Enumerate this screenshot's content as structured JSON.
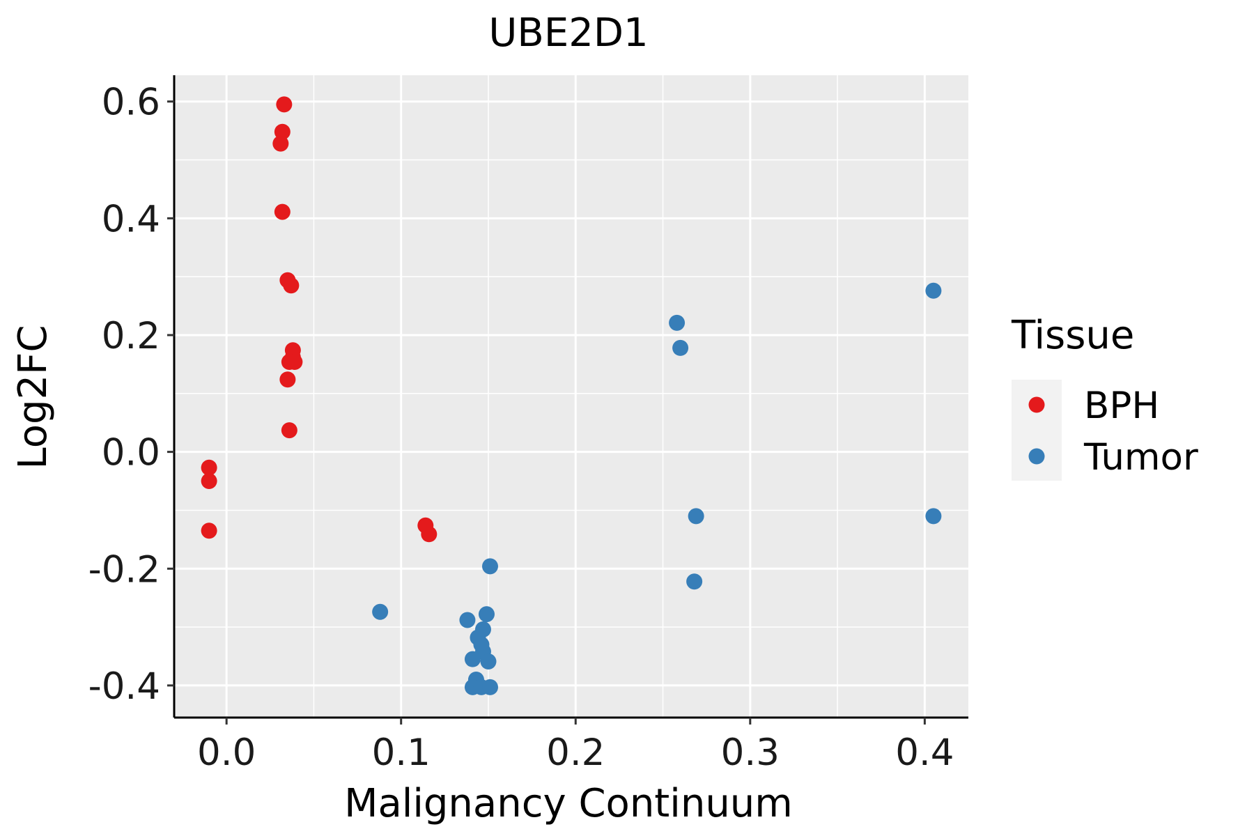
{
  "chart_data": {
    "type": "scatter",
    "title": "UBE2D1",
    "xlabel": "Malignancy Continuum",
    "ylabel": "Log2FC",
    "xlim": [
      -0.03,
      0.425
    ],
    "ylim": [
      -0.455,
      0.645
    ],
    "xticks": [
      0.0,
      0.1,
      0.2,
      0.3,
      0.4
    ],
    "xtick_labels": [
      "0.0",
      "0.1",
      "0.2",
      "0.3",
      "0.4"
    ],
    "yticks": [
      -0.4,
      -0.2,
      0.0,
      0.2,
      0.4,
      0.6
    ],
    "ytick_labels": [
      "-0.4",
      "-0.2",
      "0.0",
      "0.2",
      "0.4",
      "0.6"
    ],
    "grid": true,
    "legend": {
      "title": "Tissue",
      "placement": "right"
    },
    "series": [
      {
        "name": "BPH",
        "color": "#E41A1C",
        "points": [
          {
            "x": 0.033,
            "y": 0.595
          },
          {
            "x": 0.032,
            "y": 0.548
          },
          {
            "x": 0.031,
            "y": 0.528
          },
          {
            "x": 0.032,
            "y": 0.411
          },
          {
            "x": 0.035,
            "y": 0.294
          },
          {
            "x": 0.037,
            "y": 0.285
          },
          {
            "x": 0.038,
            "y": 0.174
          },
          {
            "x": 0.038,
            "y": 0.162
          },
          {
            "x": 0.039,
            "y": 0.154
          },
          {
            "x": 0.036,
            "y": 0.154
          },
          {
            "x": 0.035,
            "y": 0.124
          },
          {
            "x": 0.036,
            "y": 0.037
          },
          {
            "x": -0.01,
            "y": -0.027
          },
          {
            "x": -0.01,
            "y": -0.05
          },
          {
            "x": -0.01,
            "y": -0.135
          },
          {
            "x": 0.114,
            "y": -0.126
          },
          {
            "x": 0.116,
            "y": -0.141
          }
        ]
      },
      {
        "name": "Tumor",
        "color": "#377EB8",
        "points": [
          {
            "x": 0.405,
            "y": 0.276
          },
          {
            "x": 0.258,
            "y": 0.221
          },
          {
            "x": 0.26,
            "y": 0.178
          },
          {
            "x": 0.269,
            "y": -0.11
          },
          {
            "x": 0.405,
            "y": -0.11
          },
          {
            "x": 0.268,
            "y": -0.222
          },
          {
            "x": 0.151,
            "y": -0.196
          },
          {
            "x": 0.088,
            "y": -0.274
          },
          {
            "x": 0.149,
            "y": -0.278
          },
          {
            "x": 0.138,
            "y": -0.288
          },
          {
            "x": 0.147,
            "y": -0.304
          },
          {
            "x": 0.144,
            "y": -0.318
          },
          {
            "x": 0.146,
            "y": -0.33
          },
          {
            "x": 0.147,
            "y": -0.342
          },
          {
            "x": 0.141,
            "y": -0.355
          },
          {
            "x": 0.15,
            "y": -0.359
          },
          {
            "x": 0.143,
            "y": -0.39
          },
          {
            "x": 0.141,
            "y": -0.403
          },
          {
            "x": 0.146,
            "y": -0.403
          },
          {
            "x": 0.151,
            "y": -0.403
          }
        ]
      }
    ]
  }
}
